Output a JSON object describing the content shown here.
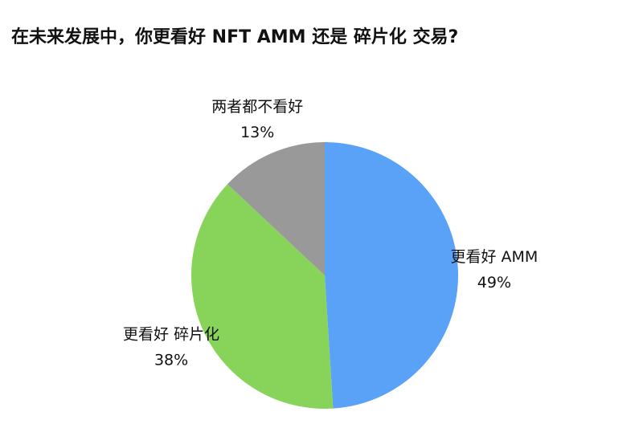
{
  "chart_data": {
    "type": "pie",
    "title": "在未来发展中，你更看好 NFT AMM 还是 碎片化 交易?",
    "categories": [
      "更看好 AMM",
      "更看好 碎片化",
      "两者都不看好"
    ],
    "values": [
      49,
      38,
      13
    ],
    "value_labels": [
      "49%",
      "38%",
      "13%"
    ],
    "colors": [
      "#5aa2f8",
      "#88d45a",
      "#999999"
    ]
  }
}
